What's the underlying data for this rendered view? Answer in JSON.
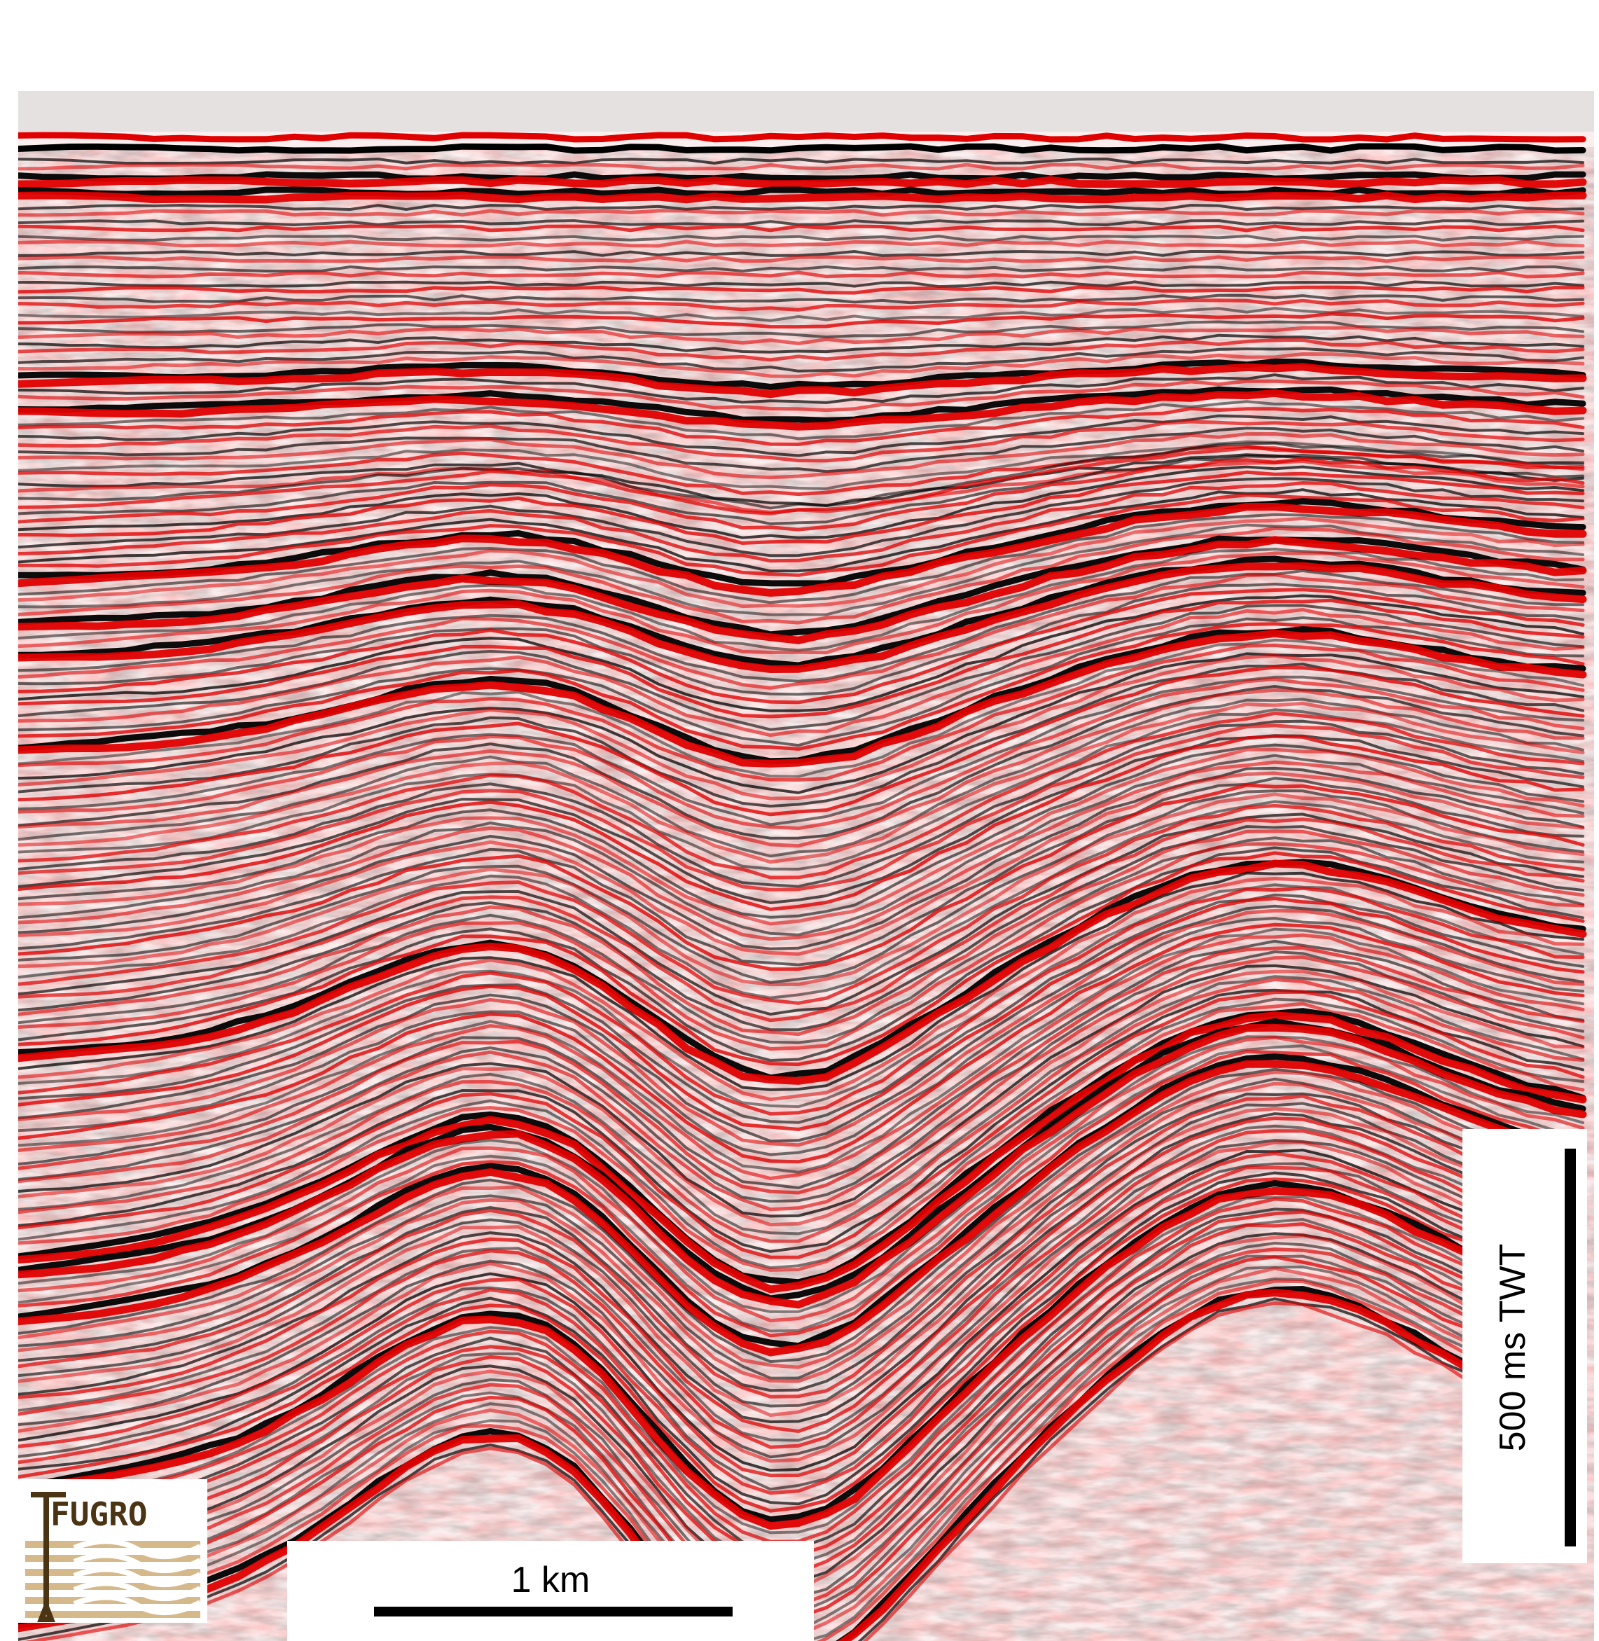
{
  "figure": {
    "background_color": "#ffffff",
    "colors": {
      "positive_amplitude": "#e00000",
      "negative_amplitude": "#000000",
      "background": "#ffffff",
      "logo_brown": "#4a3414",
      "logo_tan": "#d6b98a"
    },
    "horizontal_scale": {
      "label": "1 km"
    },
    "vertical_scale": {
      "label": "500 ms TWT"
    },
    "logo": {
      "text": "FUGRO",
      "icon": "fugro-logo"
    }
  }
}
